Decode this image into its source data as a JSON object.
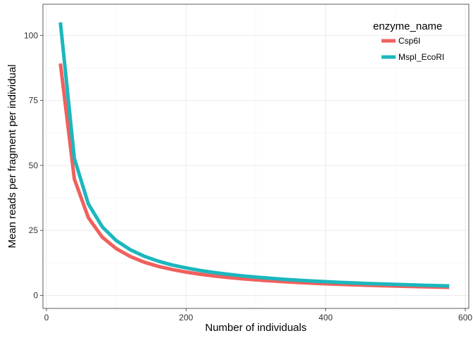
{
  "chart_data": {
    "type": "line",
    "title": "",
    "xlabel": "Number of individuals",
    "ylabel": "Mean reads per fragment per individual",
    "xlim": [
      -5,
      605
    ],
    "ylim": [
      -5,
      112
    ],
    "x_ticks": [
      0,
      200,
      400,
      600
    ],
    "y_ticks": [
      0,
      25,
      50,
      75,
      100
    ],
    "x_tick_labels": [
      "0",
      "200",
      "400",
      "600"
    ],
    "y_tick_labels": [
      "0",
      "25",
      "50",
      "75",
      "100"
    ],
    "grid": true,
    "legend": {
      "title": "enzyme_name",
      "position": "top-right"
    },
    "x": [
      20,
      40,
      60,
      80,
      100,
      120,
      140,
      160,
      180,
      200,
      220,
      240,
      260,
      280,
      300,
      320,
      340,
      360,
      380,
      400,
      420,
      440,
      460,
      480,
      500,
      520,
      540,
      560,
      577
    ],
    "series": [
      {
        "name": "Csp6I",
        "color": "#F0605D",
        "values": [
          89.2,
          44.8,
          29.9,
          22.4,
          18.0,
          15.0,
          12.8,
          11.2,
          9.98,
          8.98,
          8.16,
          7.48,
          6.91,
          6.41,
          5.99,
          5.61,
          5.28,
          4.99,
          4.73,
          4.49,
          4.28,
          4.08,
          3.9,
          3.74,
          3.59,
          3.45,
          3.33,
          3.21,
          3.11
        ]
      },
      {
        "name": "MspI_EcoRI",
        "color": "#1BB7BE",
        "values": [
          105.0,
          52.7,
          35.2,
          26.4,
          21.1,
          17.6,
          15.1,
          13.2,
          11.7,
          10.6,
          9.61,
          8.81,
          8.13,
          7.55,
          7.05,
          6.61,
          6.22,
          5.87,
          5.56,
          5.29,
          5.03,
          4.81,
          4.6,
          4.41,
          4.23,
          4.07,
          3.92,
          3.78,
          3.66
        ]
      }
    ]
  }
}
